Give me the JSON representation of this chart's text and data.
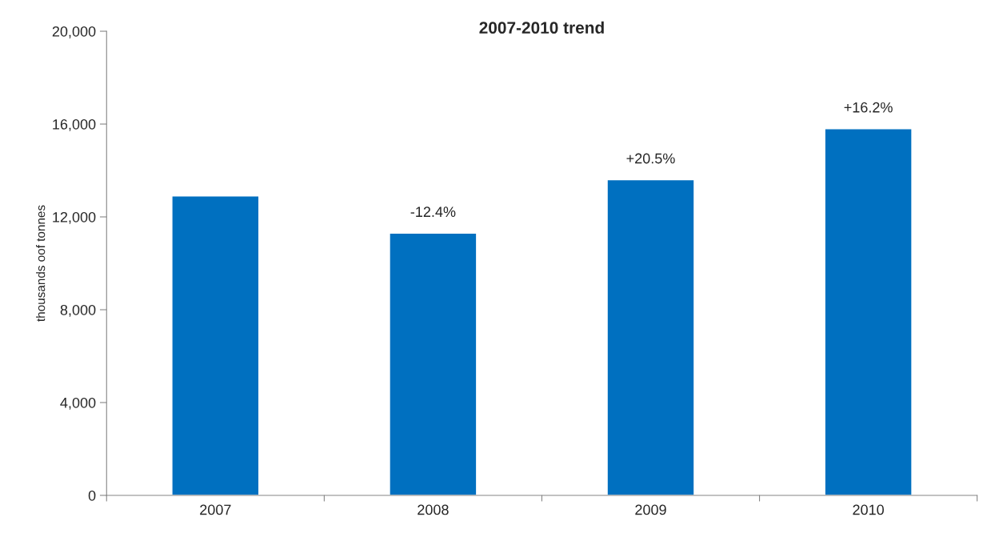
{
  "chart_data": {
    "type": "bar",
    "title": "2007-2010 trend",
    "ylabel": "thousands oof tonnes",
    "categories": [
      "2007",
      "2008",
      "2009",
      "2010"
    ],
    "values": [
      12900,
      11300,
      13600,
      15800
    ],
    "annotations": [
      {
        "text": "-12.4%",
        "x": "2008",
        "y": 11300
      },
      {
        "text": "+20.5%",
        "x": "2009",
        "y": 13600
      },
      {
        "text": "+16.2%",
        "x": "2010",
        "y": 15800
      }
    ],
    "color": "#0070c0",
    "ylim": [
      0,
      20000
    ],
    "yticks": [
      {
        "value": 0,
        "label": "0"
      },
      {
        "value": 4000,
        "label": "4,000"
      },
      {
        "value": 8000,
        "label": "8,000"
      },
      {
        "value": 12000,
        "label": "12,000"
      },
      {
        "value": 16000,
        "label": "16,000"
      },
      {
        "value": 20000,
        "label": "20,000"
      }
    ],
    "grid": false,
    "legend": false
  }
}
